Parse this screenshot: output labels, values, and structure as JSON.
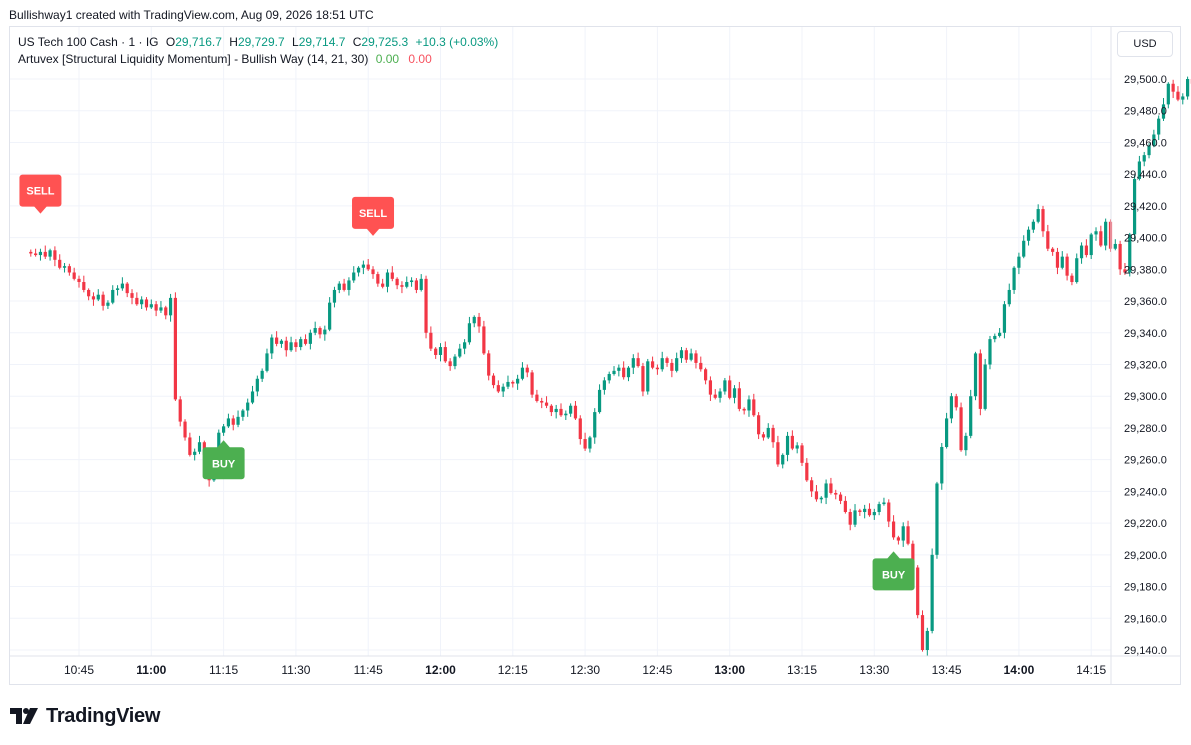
{
  "header": {
    "attribution": "Bullishway1 created with TradingView.com, Aug 09, 2026 18:51 UTC"
  },
  "legend": {
    "symbol": "US Tech 100 Cash · 1 · IG",
    "o_label": "O",
    "o_value": "29,716.7",
    "h_label": "H",
    "h_value": "29,729.7",
    "l_label": "L",
    "l_value": "29,714.7",
    "c_label": "C",
    "c_value": "29,725.3",
    "change": "+10.3 (+0.03%)",
    "indicator": "Artuvex [Structural Liquidity Momentum] - Bullish Way (14, 21, 30)",
    "indicator_v0": "0.00",
    "indicator_v1": "0.00"
  },
  "currency_button": "USD",
  "footer": {
    "brand": "TradingView"
  },
  "colors": {
    "up": "#089981",
    "down": "#f23645",
    "buy": "#4caf50",
    "sell": "#ff5252",
    "grid": "#f0f3fa"
  },
  "chart_data": {
    "type": "candlestick",
    "interval": "1 minute",
    "y_range": [
      29130,
      29535
    ],
    "y_ticks": [
      "29,500.0",
      "29,480.0",
      "29,460.0",
      "29,440.0",
      "29,420.0",
      "29,400.0",
      "29,380.0",
      "29,360.0",
      "29,340.0",
      "29,320.0",
      "29,300.0",
      "29,280.0",
      "29,260.0",
      "29,240.0",
      "29,220.0",
      "29,200.0",
      "29,180.0",
      "29,160.0",
      "29,140.0"
    ],
    "x_ticks": [
      {
        "label": "10:45",
        "bold": false
      },
      {
        "label": "11:00",
        "bold": true
      },
      {
        "label": "11:15",
        "bold": false
      },
      {
        "label": "11:30",
        "bold": false
      },
      {
        "label": "11:45",
        "bold": false
      },
      {
        "label": "12:00",
        "bold": true
      },
      {
        "label": "12:15",
        "bold": false
      },
      {
        "label": "12:30",
        "bold": false
      },
      {
        "label": "12:45",
        "bold": false
      },
      {
        "label": "13:00",
        "bold": true
      },
      {
        "label": "13:15",
        "bold": false
      },
      {
        "label": "13:30",
        "bold": false
      },
      {
        "label": "13:45",
        "bold": false
      },
      {
        "label": "14:00",
        "bold": true
      },
      {
        "label": "14:15",
        "bold": false
      }
    ],
    "closes": [
      29390,
      29389,
      29391,
      29388,
      29392,
      29386,
      29381,
      29382,
      29378,
      29374,
      29372,
      29367,
      29363,
      29361,
      29364,
      29357,
      29359,
      29367,
      29368,
      29371,
      29365,
      29362,
      29358,
      29361,
      29356,
      29358,
      29354,
      29356,
      29351,
      29362,
      29298,
      29284,
      29274,
      29263,
      29265,
      29271,
      29263,
      29247,
      29262,
      29277,
      29281,
      29286,
      29282,
      29287,
      29291,
      29296,
      29303,
      29311,
      29316,
      29327,
      29337,
      29333,
      29335,
      29329,
      29334,
      29331,
      29336,
      29333,
      29340,
      29343,
      29339,
      29342,
      29359,
      29367,
      29371,
      29367,
      29373,
      29378,
      29381,
      29383,
      29380,
      29377,
      29371,
      29369,
      29378,
      29374,
      29370,
      29369,
      29372,
      29373,
      29367,
      29374,
      29340,
      29330,
      29326,
      29331,
      29322,
      29319,
      29325,
      29330,
      29334,
      29346,
      29350,
      29344,
      29327,
      29313,
      29307,
      29303,
      29306,
      29309,
      29308,
      29311,
      29318,
      29315,
      29301,
      29297,
      29296,
      29294,
      29290,
      29292,
      29288,
      29289,
      29294,
      29286,
      29273,
      29267,
      29274,
      29290,
      29304,
      29310,
      29314,
      29316,
      29318,
      29312,
      29318,
      29324,
      29319,
      29303,
      29322,
      29318,
      29317,
      29324,
      29321,
      29316,
      29324,
      29329,
      29323,
      29327,
      29321,
      29317,
      29310,
      29301,
      29299,
      29303,
      29310,
      29299,
      29305,
      29292,
      29291,
      29298,
      29288,
      29276,
      29274,
      29280,
      29271,
      29257,
      29263,
      29275,
      29267,
      29269,
      29258,
      29247,
      29240,
      29235,
      29236,
      29245,
      29239,
      29238,
      29234,
      29227,
      29219,
      29228,
      29227,
      29229,
      29225,
      29227,
      29232,
      29233,
      29221,
      29211,
      29209,
      29218,
      29207,
      29192,
      29162,
      29140,
      29152,
      29200,
      29245,
      29268,
      29286,
      29300,
      29293,
      29266,
      29275,
      29300,
      29327,
      29292,
      29320,
      29336,
      29338,
      29340,
      29358,
      29367,
      29381,
      29388,
      29398,
      29405,
      29410,
      29418,
      29404,
      29393,
      29391,
      29381,
      29388,
      29376,
      29372,
      29387,
      29395,
      29389,
      29402,
      29404,
      29395,
      29410,
      29393,
      29396,
      29380,
      29378,
      29402,
      29437,
      29448,
      29452,
      29458,
      29465,
      29475,
      29484,
      29497,
      29492,
      29487,
      29489,
      29500,
      29497,
      29504,
      29524,
      29531,
      29528,
      29525,
      29530,
      29526,
      29529,
      29522,
      29533,
      29528,
      29530
    ],
    "signals": [
      {
        "type": "SELL",
        "label": "SELL",
        "time": "10:37"
      },
      {
        "type": "BUY",
        "label": "BUY",
        "time": "11:15"
      },
      {
        "type": "SELL",
        "label": "SELL",
        "time": "11:46"
      },
      {
        "type": "BUY",
        "label": "BUY",
        "time": "13:34"
      }
    ]
  }
}
